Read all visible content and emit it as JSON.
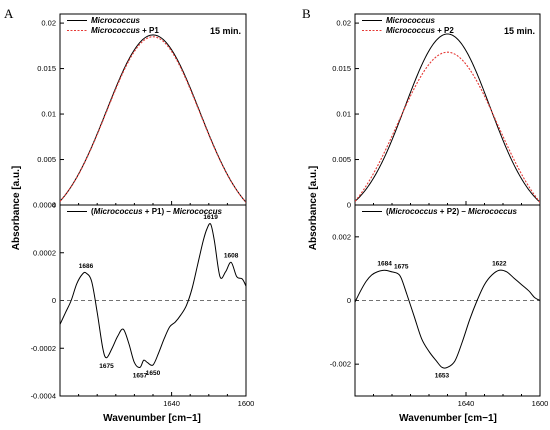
{
  "figure": {
    "ylabel": "Absorbance [a.u.]",
    "xlabel": "Wavenumber [cm−1]"
  },
  "chart_data": [
    {
      "type": "line",
      "panel": "A",
      "position": "top-left",
      "note": "15 min.",
      "xlim": [
        1700,
        1600
      ],
      "ylim": [
        0,
        0.021
      ],
      "x_ticks": [
        1640,
        1600
      ],
      "y_ticks": [
        {
          "v": 0,
          "label": "0"
        },
        {
          "v": 0.005,
          "label": "0.005"
        },
        {
          "v": 0.01,
          "label": "0.01"
        },
        {
          "v": 0.015,
          "label": "0.015"
        },
        {
          "v": 0.02,
          "label": "0.02"
        }
      ],
      "legend_placement": "top-left",
      "series": [
        {
          "name": "Micrococcus",
          "style": "solid",
          "color": "#000000",
          "peak_x": 1650,
          "peak_y": 0.0187,
          "width": 25,
          "left_y": 0.0004,
          "right_y": 0.0003
        },
        {
          "name": "Micrococcus + P1",
          "style": "dotted",
          "color": "#e53935",
          "peak_x": 1650,
          "peak_y": 0.0185,
          "width": 25,
          "left_y": 0.0004,
          "right_y": 0.0003
        }
      ]
    },
    {
      "type": "line",
      "panel": "A",
      "position": "bottom-left",
      "xlim": [
        1700,
        1600
      ],
      "ylim": [
        -0.0004,
        0.0004
      ],
      "x_ticks": [
        1640,
        1600
      ],
      "y_ticks": [
        {
          "v": -0.0004,
          "label": "-0.0004"
        },
        {
          "v": -0.0002,
          "label": "-0.0002"
        },
        {
          "v": 0,
          "label": "0"
        },
        {
          "v": 0.0002,
          "label": "0.0002"
        },
        {
          "v": 0.0004,
          "label": "0.0004"
        }
      ],
      "legend_placement": "top-left",
      "zero_line": true,
      "series": [
        {
          "name_parts": [
            "(",
            "Micrococcus",
            " + P1) – ",
            "Micrococcus"
          ],
          "style": "solid",
          "color": "#000000",
          "x": [
            1700,
            1697,
            1694,
            1691,
            1688,
            1686,
            1683,
            1680,
            1677,
            1675,
            1672,
            1669,
            1666,
            1663,
            1660,
            1657,
            1655,
            1653,
            1650,
            1647,
            1644,
            1641,
            1638,
            1635,
            1632,
            1629,
            1626,
            1623,
            1621,
            1619,
            1617,
            1614,
            1611,
            1608,
            1605,
            1602,
            1600
          ],
          "y": [
            -0.0001,
            -5e-05,
            0.0,
            7e-05,
            0.00011,
            0.000115,
            8e-05,
            -5e-05,
            -0.0002,
            -0.00024,
            -0.0002,
            -0.00015,
            -0.00012,
            -0.00018,
            -0.00026,
            -0.00028,
            -0.00025,
            -0.00026,
            -0.00027,
            -0.00022,
            -0.00016,
            -0.00011,
            -9e-05,
            -6e-05,
            -2e-05,
            5e-05,
            0.00015,
            0.00025,
            0.0003,
            0.00032,
            0.00025,
            0.0001,
            0.00012,
            0.00016,
            0.0001,
            9e-05,
            6e-05
          ]
        }
      ],
      "annotations": [
        {
          "label": "1686",
          "x": 1686,
          "y": 0.000115,
          "pos": "above"
        },
        {
          "label": "1675",
          "x": 1675,
          "y": -0.00024,
          "pos": "below"
        },
        {
          "label": "1657",
          "x": 1657,
          "y": -0.00028,
          "pos": "below"
        },
        {
          "label": "1650",
          "x": 1650,
          "y": -0.00027,
          "pos": "below"
        },
        {
          "label": "1619",
          "x": 1619,
          "y": 0.00032,
          "pos": "above"
        },
        {
          "label": "1608",
          "x": 1608,
          "y": 0.00016,
          "pos": "above"
        }
      ]
    },
    {
      "type": "line",
      "panel": "B",
      "position": "top-right",
      "note": "15 min.",
      "xlim": [
        1700,
        1600
      ],
      "ylim": [
        0,
        0.021
      ],
      "x_ticks": [
        1640,
        1600
      ],
      "y_ticks": [
        {
          "v": 0,
          "label": "0"
        },
        {
          "v": 0.005,
          "label": "0.005"
        },
        {
          "v": 0.01,
          "label": "0.01"
        },
        {
          "v": 0.015,
          "label": "0.015"
        },
        {
          "v": 0.02,
          "label": "0.02"
        }
      ],
      "legend_placement": "top-left",
      "series": [
        {
          "name": "Micrococcus",
          "style": "solid",
          "color": "#000000",
          "peak_x": 1650,
          "peak_y": 0.0188,
          "width": 23,
          "left_y": 0.0004,
          "right_y": 0.0003
        },
        {
          "name": "Micrococcus + P2",
          "style": "dotted",
          "color": "#e53935",
          "peak_x": 1650,
          "peak_y": 0.0168,
          "width": 27,
          "left_y": 0.0004,
          "right_y": 0.0003
        }
      ]
    },
    {
      "type": "line",
      "panel": "B",
      "position": "bottom-right",
      "xlim": [
        1700,
        1600
      ],
      "ylim": [
        -0.003,
        0.003
      ],
      "x_ticks": [
        1640,
        1600
      ],
      "y_ticks": [
        {
          "v": -0.002,
          "label": "-0.002"
        },
        {
          "v": 0,
          "label": "0"
        },
        {
          "v": 0.002,
          "label": "0.002"
        }
      ],
      "legend_placement": "top-left",
      "zero_line": true,
      "series": [
        {
          "name_parts": [
            "(",
            "Micrococcus",
            " + P2) – ",
            "Micrococcus"
          ],
          "style": "solid",
          "color": "#000000",
          "x": [
            1700,
            1697,
            1694,
            1691,
            1688,
            1684,
            1680,
            1677,
            1675,
            1672,
            1668,
            1664,
            1660,
            1656,
            1653,
            1650,
            1646,
            1642,
            1638,
            1634,
            1630,
            1626,
            1622,
            1618,
            1614,
            1610,
            1606,
            1603,
            1600
          ],
          "y": [
            -5e-05,
            0.0003,
            0.0006,
            0.0008,
            0.0009,
            0.00095,
            0.0009,
            0.00085,
            0.0007,
            0.0002,
            -0.0005,
            -0.0012,
            -0.0016,
            -0.0019,
            -0.0021,
            -0.0021,
            -0.0019,
            -0.0013,
            -0.0006,
            0.0,
            0.0005,
            0.0008,
            0.00095,
            0.0009,
            0.0007,
            0.0005,
            0.0003,
            0.0001,
            0.0
          ]
        }
      ],
      "annotations": [
        {
          "label": "1684",
          "x": 1684,
          "y": 0.00095,
          "pos": "above"
        },
        {
          "label": "1675",
          "x": 1675,
          "y": 0.00085,
          "pos": "above"
        },
        {
          "label": "1653",
          "x": 1653,
          "y": -0.0021,
          "pos": "below"
        },
        {
          "label": "1622",
          "x": 1622,
          "y": 0.00095,
          "pos": "above"
        }
      ]
    }
  ]
}
